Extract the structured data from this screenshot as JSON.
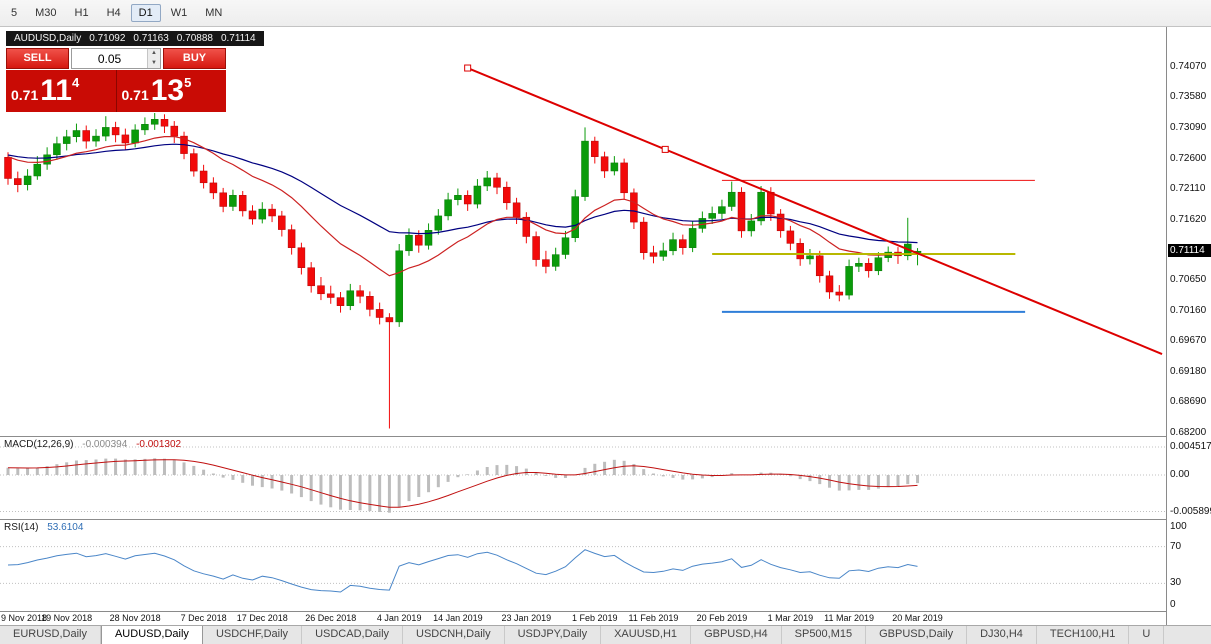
{
  "toolbar": {
    "timeframes": [
      "5",
      "M30",
      "H1",
      "H4",
      "D1",
      "W1",
      "MN"
    ],
    "active_timeframe": "D1"
  },
  "ohlc_bar": {
    "symbol_period": "AUDUSD,Daily",
    "open": "0.71092",
    "high": "0.71163",
    "low": "0.70888",
    "close": "0.71114"
  },
  "trade_panel": {
    "sell_label": "SELL",
    "buy_label": "BUY",
    "volume": "0.05",
    "sell_price_prefix": "0.71",
    "sell_price_big": "11",
    "sell_price_sup": "4",
    "buy_price_prefix": "0.71",
    "buy_price_big": "13",
    "buy_price_sup": "5"
  },
  "price_axis": {
    "labels": [
      {
        "text": "0.74070",
        "price": 0.7407
      },
      {
        "text": "0.73580",
        "price": 0.7358
      },
      {
        "text": "0.73090",
        "price": 0.7309
      },
      {
        "text": "0.72600",
        "price": 0.726
      },
      {
        "text": "0.72110",
        "price": 0.7211
      },
      {
        "text": "0.71620",
        "price": 0.7162
      },
      {
        "text": "0.70650",
        "price": 0.7065
      },
      {
        "text": "0.70160",
        "price": 0.7016
      },
      {
        "text": "0.69670",
        "price": 0.6967
      },
      {
        "text": "0.69180",
        "price": 0.6918
      },
      {
        "text": "0.68690",
        "price": 0.6869
      },
      {
        "text": "0.68200",
        "price": 0.682
      }
    ],
    "current_price": {
      "text": "0.71114",
      "price": 0.71114
    }
  },
  "indicators": {
    "macd": {
      "label": "MACD(12,26,9)",
      "value1": "-0.000394",
      "value2": "-0.001302",
      "axis_labels": [
        {
          "text": "0.004517",
          "value": 0.004517
        },
        {
          "text": "0.00",
          "value": 0
        },
        {
          "text": "-0.005899",
          "value": -0.005899
        }
      ]
    },
    "rsi": {
      "label": "RSI(14)",
      "value": "53.6104",
      "axis_labels": [
        {
          "text": "100",
          "value": 100
        },
        {
          "text": "70",
          "value": 70
        },
        {
          "text": "30",
          "value": 30
        },
        {
          "text": "0",
          "value": 0
        }
      ],
      "levels": [
        70,
        30
      ]
    }
  },
  "date_axis": [
    {
      "label": "9 Nov 2018",
      "index": 0
    },
    {
      "label": "19 Nov 2018",
      "index": 6
    },
    {
      "label": "28 Nov 2018",
      "index": 13
    },
    {
      "label": "7 Dec 2018",
      "index": 20
    },
    {
      "label": "17 Dec 2018",
      "index": 26
    },
    {
      "label": "26 Dec 2018",
      "index": 33
    },
    {
      "label": "4 Jan 2019",
      "index": 40
    },
    {
      "label": "14 Jan 2019",
      "index": 46
    },
    {
      "label": "23 Jan 2019",
      "index": 53
    },
    {
      "label": "1 Feb 2019",
      "index": 60
    },
    {
      "label": "11 Feb 2019",
      "index": 66
    },
    {
      "label": "20 Feb 2019",
      "index": 73
    },
    {
      "label": "1 Mar 2019",
      "index": 80
    },
    {
      "label": "11 Mar 2019",
      "index": 86
    },
    {
      "label": "20 Mar 2019",
      "index": 93
    }
  ],
  "tabs": [
    {
      "label": "EURUSD,Daily",
      "active": false
    },
    {
      "label": "AUDUSD,Daily",
      "active": true
    },
    {
      "label": "USDCHF,Daily",
      "active": false
    },
    {
      "label": "USDCAD,Daily",
      "active": false
    },
    {
      "label": "USDCNH,Daily",
      "active": false
    },
    {
      "label": "USDJPY,Daily",
      "active": false
    },
    {
      "label": "XAUUSD,H1",
      "active": false
    },
    {
      "label": "GBPUSD,H4",
      "active": false
    },
    {
      "label": "SP500,M15",
      "active": false
    },
    {
      "label": "GBPUSD,Daily",
      "active": false
    },
    {
      "label": "DJ30,H4",
      "active": false
    },
    {
      "label": "TECH100,H1",
      "active": false
    },
    {
      "label": "U",
      "active": false
    }
  ],
  "chart_data": {
    "type": "candlestick",
    "symbol": "AUDUSD",
    "timeframe": "Daily",
    "price_range": {
      "top": 0.7471,
      "bottom": 0.6815
    },
    "colors": {
      "up_fill": "#0a9b0a",
      "up_stroke": "#067a06",
      "down_fill": "#f20a0a",
      "down_stroke": "#b00404",
      "macd_histogram": "#bdbdbd",
      "macd_signal": "#c01010",
      "rsi_line": "#4a86c8",
      "grid_dotted": "#c0c0c0",
      "separator": "#8c8c8c"
    },
    "candles": [
      [
        0.7262,
        0.727,
        0.7218,
        0.7228
      ],
      [
        0.7228,
        0.7239,
        0.7206,
        0.7218
      ],
      [
        0.7218,
        0.7243,
        0.7209,
        0.7232
      ],
      [
        0.7232,
        0.7264,
        0.7226,
        0.7251
      ],
      [
        0.7251,
        0.7278,
        0.7242,
        0.7266
      ],
      [
        0.7266,
        0.7295,
        0.7258,
        0.7284
      ],
      [
        0.7284,
        0.7306,
        0.7273,
        0.7295
      ],
      [
        0.7295,
        0.7316,
        0.7286,
        0.7305
      ],
      [
        0.7305,
        0.7313,
        0.7276,
        0.7288
      ],
      [
        0.7288,
        0.7307,
        0.7279,
        0.7296
      ],
      [
        0.7296,
        0.7328,
        0.7288,
        0.731
      ],
      [
        0.731,
        0.7319,
        0.7286,
        0.7298
      ],
      [
        0.7298,
        0.7308,
        0.7274,
        0.7285
      ],
      [
        0.7285,
        0.7315,
        0.7278,
        0.7306
      ],
      [
        0.7306,
        0.7326,
        0.7298,
        0.7315
      ],
      [
        0.7315,
        0.7333,
        0.7306,
        0.7323
      ],
      [
        0.7323,
        0.7331,
        0.7301,
        0.7312
      ],
      [
        0.7312,
        0.732,
        0.7285,
        0.7296
      ],
      [
        0.7296,
        0.7303,
        0.7259,
        0.7268
      ],
      [
        0.7268,
        0.7276,
        0.7231,
        0.724
      ],
      [
        0.724,
        0.725,
        0.7212,
        0.7221
      ],
      [
        0.7221,
        0.723,
        0.7195,
        0.7205
      ],
      [
        0.7205,
        0.7213,
        0.7174,
        0.7183
      ],
      [
        0.7183,
        0.721,
        0.7176,
        0.7201
      ],
      [
        0.7201,
        0.7208,
        0.7167,
        0.7176
      ],
      [
        0.7176,
        0.7185,
        0.7154,
        0.7163
      ],
      [
        0.7163,
        0.719,
        0.7156,
        0.7179
      ],
      [
        0.7179,
        0.7187,
        0.7158,
        0.7168
      ],
      [
        0.7168,
        0.7176,
        0.7135,
        0.7146
      ],
      [
        0.7146,
        0.7154,
        0.7106,
        0.7117
      ],
      [
        0.7117,
        0.7125,
        0.7074,
        0.7085
      ],
      [
        0.7085,
        0.7094,
        0.7045,
        0.7056
      ],
      [
        0.7056,
        0.707,
        0.7033,
        0.7043
      ],
      [
        0.7043,
        0.7056,
        0.7027,
        0.7037
      ],
      [
        0.7037,
        0.7046,
        0.7013,
        0.7024
      ],
      [
        0.7024,
        0.7059,
        0.7017,
        0.7048
      ],
      [
        0.7048,
        0.7057,
        0.7028,
        0.7039
      ],
      [
        0.7039,
        0.7047,
        0.7007,
        0.7018
      ],
      [
        0.7018,
        0.7029,
        0.6994,
        0.7005
      ],
      [
        0.7005,
        0.7012,
        0.6827,
        0.6998
      ],
      [
        0.6998,
        0.7123,
        0.699,
        0.7112
      ],
      [
        0.7112,
        0.7148,
        0.7104,
        0.7137
      ],
      [
        0.7137,
        0.7145,
        0.7109,
        0.7121
      ],
      [
        0.7121,
        0.7156,
        0.7114,
        0.7145
      ],
      [
        0.7145,
        0.7179,
        0.7138,
        0.7168
      ],
      [
        0.7168,
        0.7205,
        0.7161,
        0.7194
      ],
      [
        0.7194,
        0.7212,
        0.7185,
        0.7201
      ],
      [
        0.7201,
        0.7209,
        0.7176,
        0.7187
      ],
      [
        0.7187,
        0.7227,
        0.718,
        0.7216
      ],
      [
        0.7216,
        0.724,
        0.7208,
        0.7229
      ],
      [
        0.7229,
        0.7237,
        0.7203,
        0.7214
      ],
      [
        0.7214,
        0.7223,
        0.7178,
        0.7189
      ],
      [
        0.7189,
        0.7197,
        0.7155,
        0.7166
      ],
      [
        0.7166,
        0.7174,
        0.7124,
        0.7135
      ],
      [
        0.7135,
        0.7143,
        0.7087,
        0.7098
      ],
      [
        0.7098,
        0.7112,
        0.7076,
        0.7087
      ],
      [
        0.7087,
        0.7117,
        0.708,
        0.7106
      ],
      [
        0.7106,
        0.7144,
        0.7099,
        0.7133
      ],
      [
        0.7133,
        0.721,
        0.7126,
        0.7199
      ],
      [
        0.7199,
        0.731,
        0.7192,
        0.7288
      ],
      [
        0.7288,
        0.7295,
        0.7252,
        0.7263
      ],
      [
        0.7263,
        0.7271,
        0.7229,
        0.724
      ],
      [
        0.724,
        0.7264,
        0.7233,
        0.7253
      ],
      [
        0.7253,
        0.726,
        0.7194,
        0.7205
      ],
      [
        0.7205,
        0.7212,
        0.7147,
        0.7158
      ],
      [
        0.7158,
        0.7166,
        0.7098,
        0.7109
      ],
      [
        0.7109,
        0.712,
        0.7092,
        0.7103
      ],
      [
        0.7103,
        0.7125,
        0.7096,
        0.7112
      ],
      [
        0.7112,
        0.7141,
        0.7105,
        0.713
      ],
      [
        0.713,
        0.7138,
        0.7106,
        0.7117
      ],
      [
        0.7117,
        0.7159,
        0.711,
        0.7148
      ],
      [
        0.7148,
        0.7175,
        0.7141,
        0.7164
      ],
      [
        0.7164,
        0.7183,
        0.7155,
        0.7172
      ],
      [
        0.7172,
        0.7194,
        0.7163,
        0.7183
      ],
      [
        0.7183,
        0.7223,
        0.7176,
        0.7206
      ],
      [
        0.7206,
        0.7214,
        0.7133,
        0.7144
      ],
      [
        0.7144,
        0.7171,
        0.7135,
        0.716
      ],
      [
        0.716,
        0.7216,
        0.7153,
        0.7206
      ],
      [
        0.7206,
        0.7214,
        0.716,
        0.7171
      ],
      [
        0.7171,
        0.7179,
        0.7133,
        0.7144
      ],
      [
        0.7144,
        0.7152,
        0.7113,
        0.7124
      ],
      [
        0.7124,
        0.7132,
        0.7088,
        0.7099
      ],
      [
        0.7099,
        0.7115,
        0.709,
        0.7104
      ],
      [
        0.7104,
        0.7112,
        0.7061,
        0.7072
      ],
      [
        0.7072,
        0.708,
        0.7035,
        0.7046
      ],
      [
        0.7046,
        0.7057,
        0.7031,
        0.7041
      ],
      [
        0.7041,
        0.7098,
        0.7034,
        0.7087
      ],
      [
        0.7087,
        0.7101,
        0.7078,
        0.7092
      ],
      [
        0.7092,
        0.71,
        0.7069,
        0.708
      ],
      [
        0.708,
        0.711,
        0.7073,
        0.7101
      ],
      [
        0.7101,
        0.7119,
        0.7094,
        0.711
      ],
      [
        0.711,
        0.7118,
        0.7091,
        0.7104
      ],
      [
        0.7104,
        0.7165,
        0.7097,
        0.7123
      ],
      [
        0.71092,
        0.71163,
        0.70888,
        0.71114
      ]
    ],
    "overlays": {
      "ma_fast": {
        "type": "ema",
        "period": 15,
        "color": "#cc2222",
        "seed_offset": 0.004
      },
      "ma_slow": {
        "type": "ema",
        "period": 34,
        "color": "#000080",
        "seed_offset": 0.004
      },
      "trendline": {
        "x1_index": 47,
        "price1": 0.74052,
        "x2_index": 118,
        "price2": 0.69465,
        "color": "#dd0000",
        "width": 2,
        "anchors": [
          [
            47,
            0.74052
          ],
          [
            67.2,
            0.72747
          ]
        ]
      },
      "hlines": [
        {
          "price": 0.7225,
          "x1_index": 73,
          "x2_index": 105,
          "color": "#ee1111",
          "width": 1
        },
        {
          "price": 0.7107,
          "x1_index": 72,
          "x2_index": 103,
          "color": "#b8b800",
          "width": 2
        },
        {
          "price": 0.7014,
          "x1_index": 73,
          "x2_index": 104,
          "color": "#2f7ed8",
          "width": 2
        }
      ]
    },
    "macd": {
      "fast": 12,
      "slow": 26,
      "signal": 9,
      "seed_fast_offset": -0.0008,
      "seed_slow_offset": -0.002,
      "range": {
        "top": 0.0063,
        "bottom": -0.0071
      }
    },
    "rsi": {
      "period": 14
    }
  }
}
